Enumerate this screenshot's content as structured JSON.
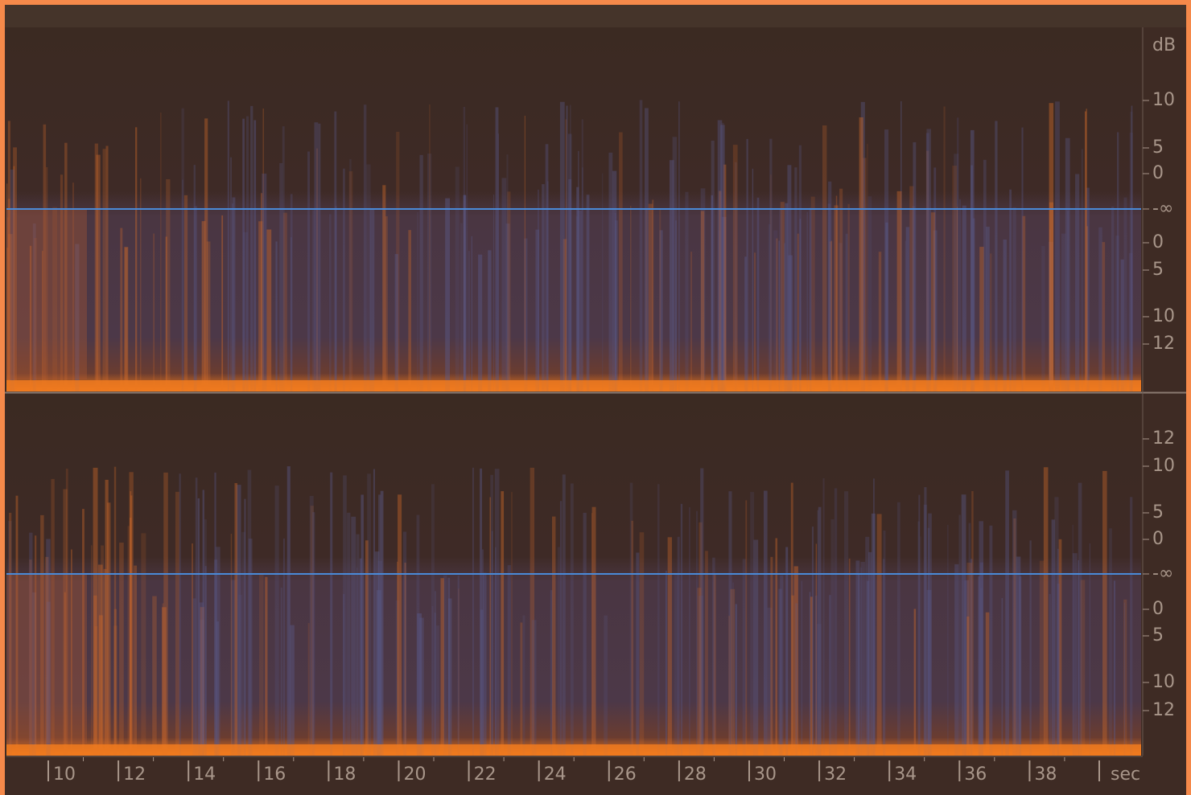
{
  "db_scale": {
    "unit": "dB",
    "top": [
      "10",
      "5",
      "0",
      "-∞",
      "0",
      "5",
      "10",
      "12"
    ],
    "bottom": [
      "12",
      "10",
      "5",
      "0",
      "-∞",
      "0",
      "5",
      "10",
      "12"
    ]
  },
  "time_axis": {
    "labels": [
      "10",
      "12",
      "14",
      "16",
      "18",
      "20",
      "22",
      "24",
      "26",
      "28",
      "30",
      "32",
      "34",
      "36",
      "38"
    ],
    "unit": "sec"
  }
}
